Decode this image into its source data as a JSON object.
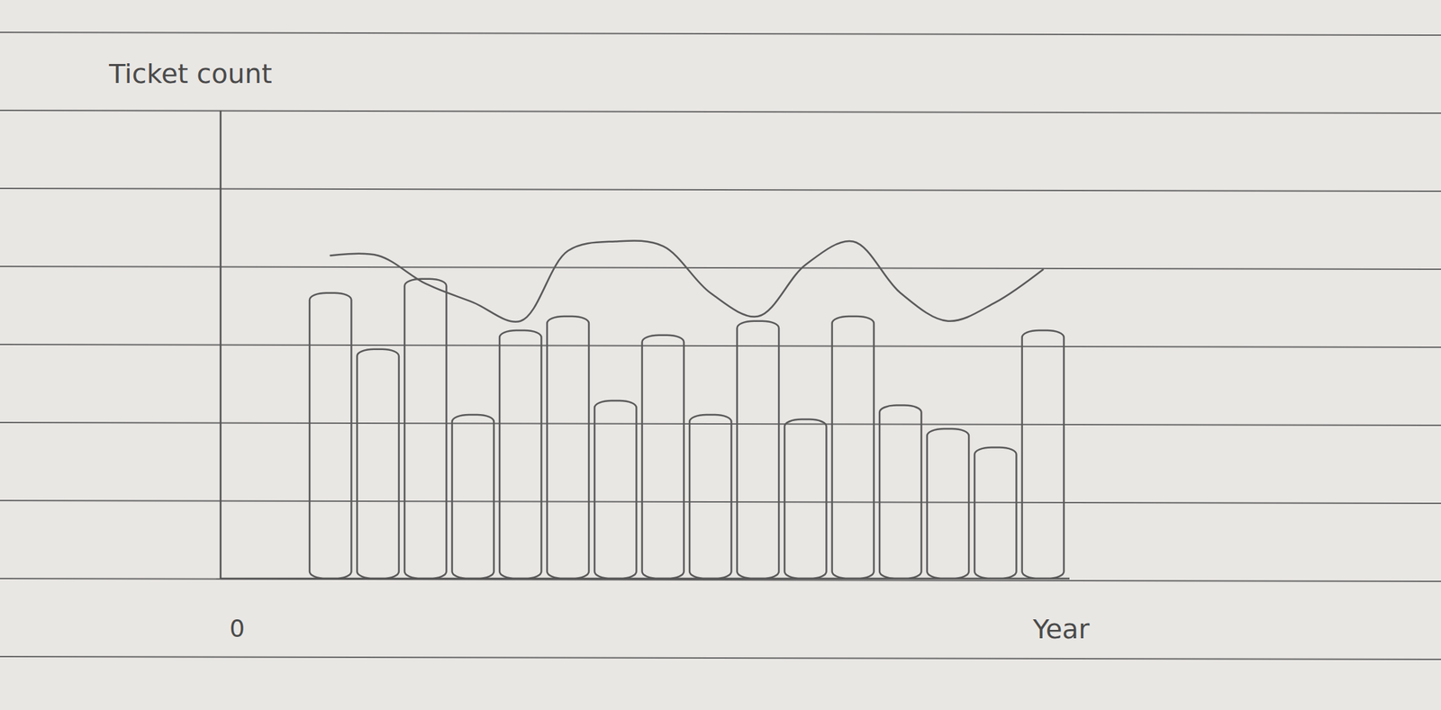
{
  "chart_data": {
    "type": "bar",
    "x_label": "Year",
    "y_label": "Ticket count",
    "categories": [
      null,
      null,
      null,
      null,
      null,
      null,
      null,
      null,
      null,
      null,
      null,
      null,
      null,
      null,
      null,
      null
    ],
    "ylim": [
      0,
      100
    ],
    "yticks": [
      0
    ],
    "tick_labels": "y",
    "series": [
      {
        "type": "bar",
        "color": "#5a5a5a",
        "values": [
          61,
          49,
          64,
          35,
          53,
          56,
          38,
          52,
          35,
          55,
          34,
          56,
          37,
          32,
          28,
          53
        ]
      },
      {
        "type": "line",
        "color": "#5a5a5a",
        "values": [
          69,
          69,
          63,
          59,
          55,
          70,
          72,
          71,
          61,
          56,
          67,
          72,
          61,
          55,
          59,
          66
        ]
      }
    ]
  }
}
